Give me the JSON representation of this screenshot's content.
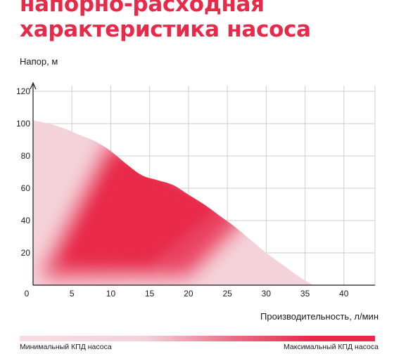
{
  "title_lines": [
    "напорно-расходная",
    "характеристика насоса"
  ],
  "colors": {
    "accent": "#e8294a",
    "light": "#f4d2da",
    "grid": "#cfcfcf"
  },
  "chart_data": {
    "type": "area",
    "title": "напорно-расходная характеристика насоса",
    "ylabel": "Напор, м",
    "xlabel": "Производительность, л/мин",
    "x_ticks": [
      0,
      5,
      10,
      15,
      20,
      25,
      30,
      35,
      40
    ],
    "y_ticks": [
      20,
      40,
      60,
      80,
      100,
      120
    ],
    "xlim": [
      0,
      44
    ],
    "ylim": [
      0,
      120
    ],
    "grid": true,
    "series": [
      {
        "x": [
          0,
          2,
          4,
          6,
          8,
          10,
          12,
          14,
          16,
          18,
          20,
          22,
          24,
          26,
          28,
          30,
          32,
          34,
          36
        ],
        "y": [
          102,
          100,
          97,
          93,
          89,
          83,
          75,
          68,
          65,
          62,
          56,
          50,
          43,
          36,
          28,
          20,
          13,
          6,
          0
        ]
      }
    ],
    "legend": {
      "min_label": "Минимальный КПД насоса",
      "max_label": "Максимальный КПД насоса"
    }
  }
}
